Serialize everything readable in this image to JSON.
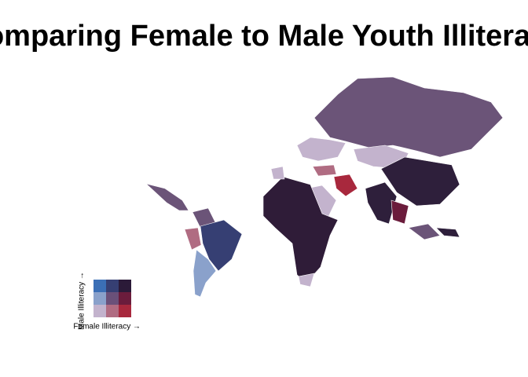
{
  "title": "Comparing Female to Male Youth Illiteracy",
  "legend": {
    "y_label": "Male Illiteracy →",
    "x_label": "Female Illiteracy →",
    "colors": [
      [
        "#3b6fb6",
        "#363f73",
        "#2b1a38"
      ],
      [
        "#8aa1cb",
        "#6a5079",
        "#6b1c3c"
      ],
      [
        "#c3b3cd",
        "#b06c82",
        "#a8283d"
      ]
    ]
  }
}
